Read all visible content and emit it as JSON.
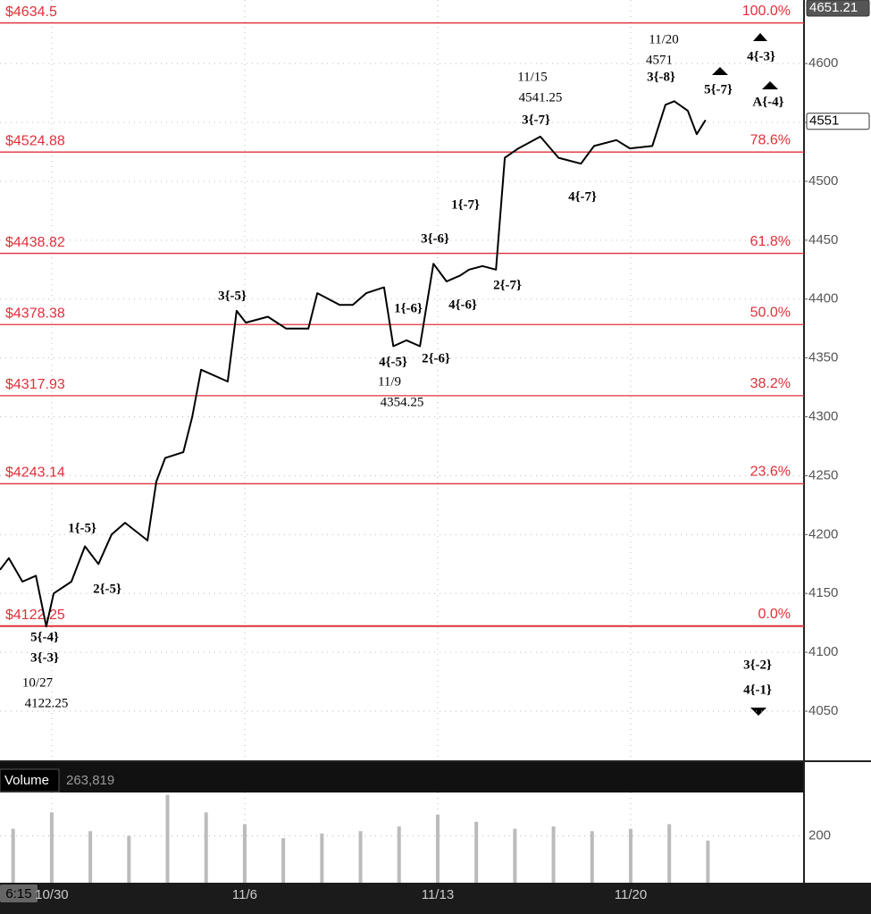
{
  "chart_data": {
    "type": "line",
    "x": [
      3.66,
      3.89,
      4.24,
      4.59,
      4.86,
      5.05,
      5.51,
      5.86,
      6.21,
      6.55,
      6.9,
      7.48,
      7.71,
      7.94,
      8.41,
      8.64,
      8.87,
      9.56,
      9.79,
      10.03,
      10.6,
      11.07,
      11.65,
      11.88,
      12.46,
      12.8,
      13.15,
      13.61,
      13.85,
      14.19,
      14.54,
      14.89,
      15.23,
      15.58,
      15.81,
      16.16,
      16.51,
      16.74,
      17.09,
      17.66,
      18.13,
      18.71,
      19.05,
      19.63,
      19.98,
      20.56,
      20.9,
      21.13,
      21.48,
      21.71,
      21.94
    ],
    "series": [
      {
        "color": "#000000",
        "values": [
          4170,
          4180,
          4160,
          4165,
          4122,
          4150,
          4160,
          4190,
          4175,
          4200,
          4210,
          4195,
          4245,
          4265,
          4270,
          4300,
          4340,
          4330,
          4390,
          4380,
          4385,
          4375,
          4375,
          4405,
          4395,
          4395,
          4405,
          4410,
          4360,
          4365,
          4360,
          4430,
          4415,
          4420,
          4425,
          4428,
          4425,
          4520,
          4528,
          4538,
          4520,
          4515,
          4530,
          4535,
          4528,
          4530,
          4565,
          4568,
          4560,
          4540,
          4552
        ]
      }
    ],
    "xlim": [
      3.66,
      24.49
    ],
    "xticks": [
      {
        "value": 5,
        "label": "10/30"
      },
      {
        "value": 10,
        "label": "11/6"
      },
      {
        "value": 15,
        "label": "11/13"
      },
      {
        "value": 20,
        "label": "11/20"
      }
    ],
    "ylim": [
      4007.5,
      4654
    ],
    "yticks": [
      4050,
      4100,
      4150,
      4200,
      4250,
      4300,
      4350,
      4400,
      4450,
      4500,
      4550,
      4600
    ],
    "grid": true,
    "price_badges": [
      4651.21,
      4551
    ],
    "levels": [
      {
        "value": 4634.5,
        "label": "$4634.5",
        "pct": "100.0%"
      },
      {
        "value": 4524.88,
        "label": "$4524.88",
        "pct": "78.6%"
      },
      {
        "value": 4438.82,
        "label": "$4438.82",
        "pct": "61.8%"
      },
      {
        "value": 4378.38,
        "label": "$4378.38",
        "pct": "50.0%"
      },
      {
        "value": 4317.93,
        "label": "$4317.93",
        "pct": "38.2%"
      },
      {
        "value": 4243.14,
        "label": "$4243.14",
        "pct": "23.6%"
      },
      {
        "value": 4122.25,
        "label": "$4122.25",
        "pct": "0.0%"
      }
    ],
    "level_color": "#e0303a",
    "annotations": [
      "3{-5}",
      "1{-6}",
      "4{-6}",
      "3{-6}",
      "1{-7}",
      "2{-7}",
      "2{-6}",
      "4{-5}",
      "11/9",
      "4354.25",
      "11/15",
      "4541.25",
      "3{-7}",
      "4{-7}",
      "11/20",
      "4571",
      "3{-8}",
      "5{-7}",
      "A{-4}",
      "4{-3}",
      "1{-5}",
      "2{-5}",
      "5{-4}",
      "3{-3}",
      "10/27",
      "4122.25",
      "3{-2}",
      "4{-1}"
    ],
    "time_label": "6:15",
    "volume": {
      "title": "Volume",
      "last": "263,819",
      "color": "#bbbbbb",
      "x": [
        4,
        5,
        6,
        7,
        8,
        9,
        10,
        11,
        12,
        13,
        14,
        15,
        16,
        17,
        18,
        19,
        20,
        21,
        22
      ],
      "values": [
        230,
        300,
        220,
        200,
        375,
        300,
        250,
        190,
        210,
        220,
        240,
        290,
        260,
        230,
        240,
        220,
        230,
        250,
        180
      ],
      "ylim": [
        0,
        385
      ],
      "yticks": [
        200
      ]
    }
  }
}
